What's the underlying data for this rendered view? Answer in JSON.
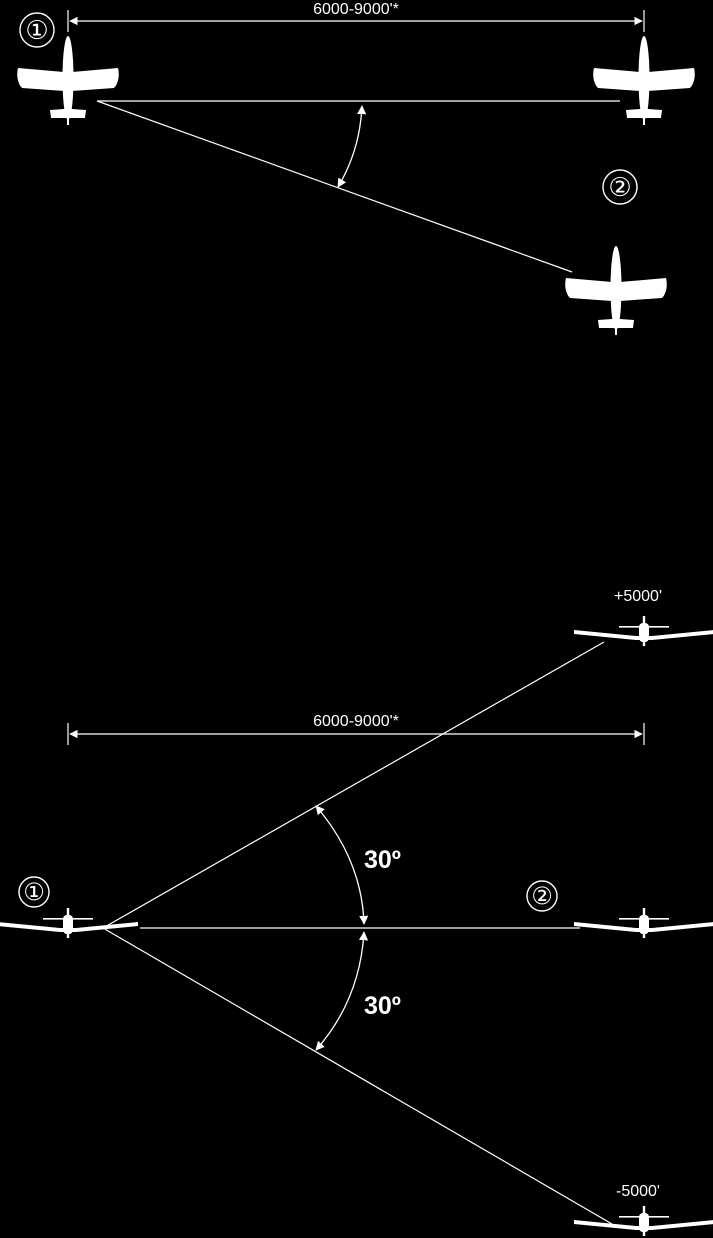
{
  "top_view": {
    "lead_marker": "①",
    "wing_marker": "②",
    "spacing_label": "6000-9000'*"
  },
  "side_view": {
    "lead_marker": "①",
    "wing_marker": "②",
    "spacing_label": "6000-9000'*",
    "upper_angle": "30º",
    "lower_angle": "30º",
    "high_altitude": "+5000'",
    "low_altitude": "-5000'"
  },
  "colors": {
    "background": "#000000",
    "foreground": "#ffffff"
  }
}
